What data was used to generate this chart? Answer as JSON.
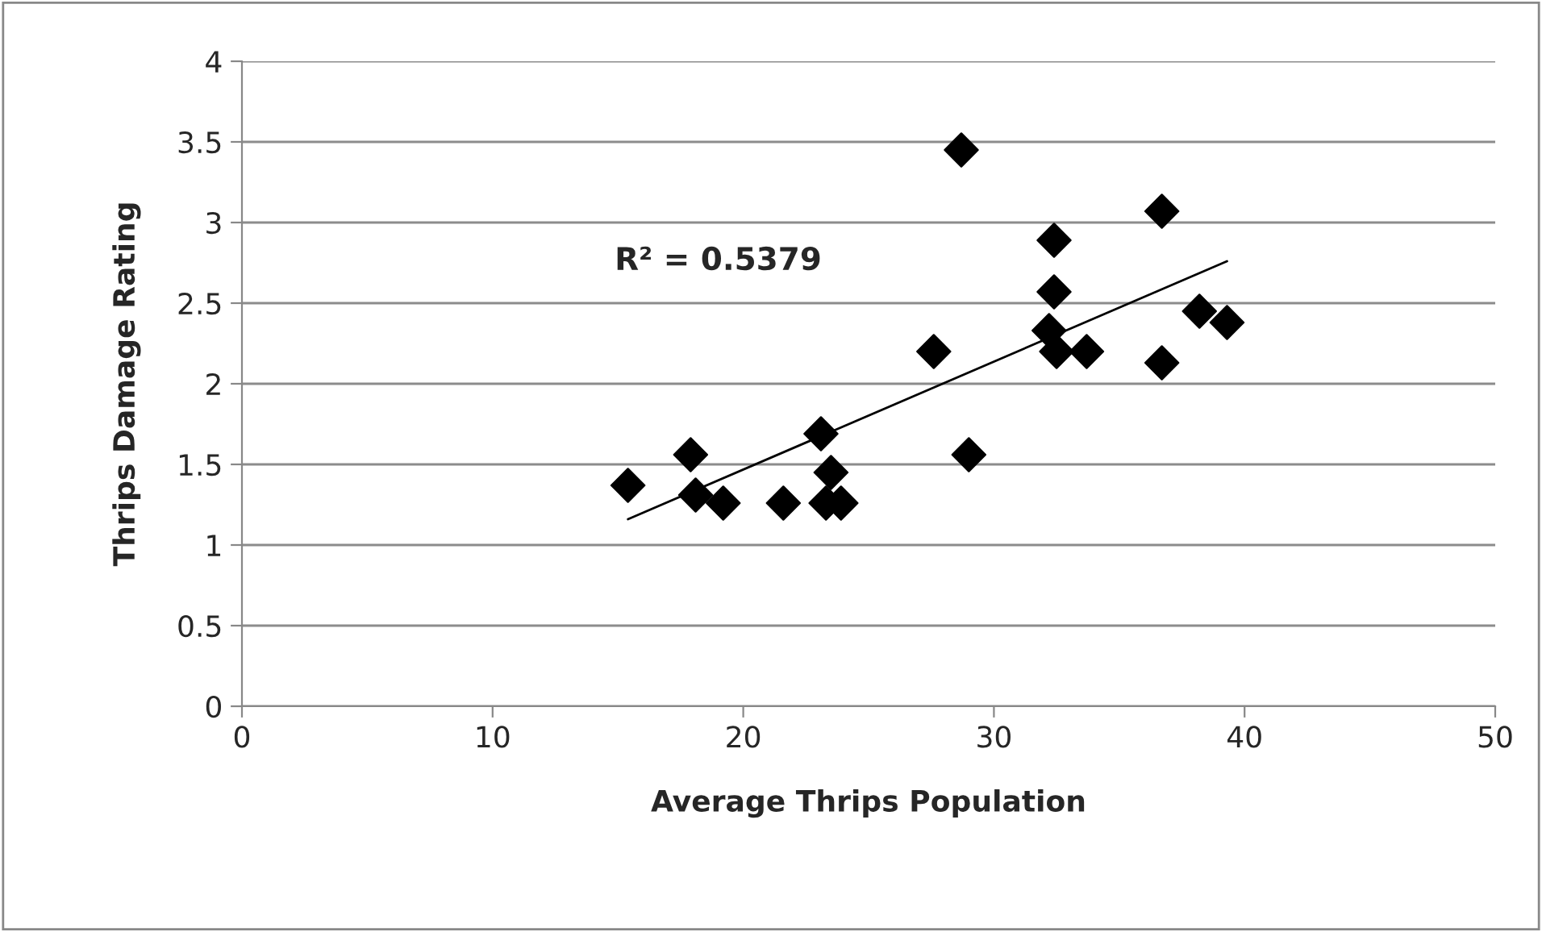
{
  "chart_data": {
    "type": "scatter",
    "xlabel": "Average Thrips Population",
    "ylabel": "Thrips Damage Rating",
    "annotations": [
      "R² = 0.5379"
    ],
    "xlim": [
      0,
      50
    ],
    "xticks": [
      0,
      10,
      20,
      30,
      40,
      50
    ],
    "ylim": [
      0,
      4
    ],
    "yticks": [
      0,
      0.5,
      1,
      1.5,
      2,
      2.5,
      3,
      3.5,
      4
    ],
    "grid": "y",
    "legend": false,
    "marker": "diamond",
    "series": [
      {
        "color": "#000000",
        "x": [
          15.4,
          17.9,
          18.1,
          19.2,
          21.6,
          23.1,
          23.5,
          23.3,
          23.9,
          28.7,
          27.6,
          29.0,
          32.4,
          32.4,
          32.2,
          32.5,
          33.7,
          36.7,
          36.7,
          38.2,
          39.3
        ],
        "values": [
          1.37,
          1.56,
          1.31,
          1.26,
          1.26,
          1.69,
          1.45,
          1.26,
          1.26,
          3.45,
          2.2,
          1.56,
          2.89,
          2.57,
          2.33,
          2.2,
          2.2,
          3.07,
          2.13,
          2.45,
          2.38
        ]
      },
      {
        "type": "line",
        "marker": "none",
        "color": "#000000",
        "x": [
          15.4,
          39.3
        ],
        "values": [
          1.16,
          2.76
        ]
      }
    ]
  }
}
